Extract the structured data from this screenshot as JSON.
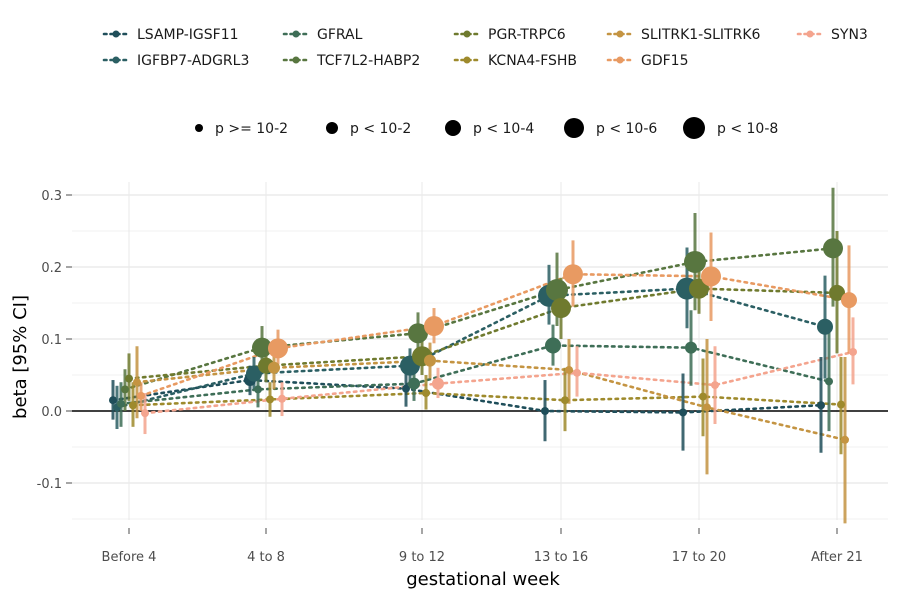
{
  "chart_data": {
    "type": "scatter",
    "xlabel": "gestational week",
    "ylabel": "beta [95% CI]",
    "categories": [
      "Before 4",
      "4 to 8",
      "9 to 12",
      "13 to 16",
      "17 to 20",
      "After 21"
    ],
    "ylim": [
      -0.155,
      0.31
    ],
    "yticks": [
      -0.1,
      0.0,
      0.1,
      0.2,
      0.3
    ],
    "ytick_labels": [
      "-0.1",
      "0.0",
      "0.1",
      "0.2",
      "0.3"
    ],
    "grid": true,
    "reference_line": 0.0,
    "legend_position": "top",
    "size_legend": [
      {
        "label": "p >= 10-2",
        "size": 1
      },
      {
        "label": "p < 10-2",
        "size": 2
      },
      {
        "label": "p < 10-4",
        "size": 3
      },
      {
        "label": "p < 10-6",
        "size": 4
      },
      {
        "label": "p < 10-8",
        "size": 5
      }
    ],
    "series": [
      {
        "name": "LSAMP-IGSF11",
        "color": "#1f4e5a",
        "values": [
          0.015,
          0.043,
          0.031,
          0.0,
          -0.002,
          0.008
        ],
        "lower": [
          -0.012,
          0.022,
          0.006,
          -0.042,
          -0.055,
          -0.058
        ],
        "upper": [
          0.043,
          0.063,
          0.056,
          0.043,
          0.052,
          0.075
        ],
        "psize": [
          1,
          2,
          1,
          1,
          1,
          1
        ]
      },
      {
        "name": "IGFBP7-ADGRL3",
        "color": "#2b5f63",
        "values": [
          0.005,
          0.052,
          0.063,
          0.16,
          0.17,
          0.117
        ],
        "lower": [
          -0.025,
          0.03,
          0.04,
          0.12,
          0.115,
          0.045
        ],
        "upper": [
          0.035,
          0.075,
          0.087,
          0.203,
          0.227,
          0.188
        ],
        "psize": [
          1,
          3,
          4,
          5,
          5,
          3
        ]
      },
      {
        "name": "GFRAL",
        "color": "#3e6e57",
        "values": [
          0.01,
          0.03,
          0.038,
          0.091,
          0.088,
          0.041
        ],
        "lower": [
          -0.022,
          0.005,
          0.014,
          0.063,
          0.035,
          -0.028
        ],
        "upper": [
          0.04,
          0.055,
          0.063,
          0.12,
          0.14,
          0.111
        ],
        "psize": [
          1,
          1,
          2,
          3,
          2,
          1
        ]
      },
      {
        "name": "TCF7L2-HABP2",
        "color": "#587640",
        "values": [
          0.03,
          0.088,
          0.108,
          0.168,
          0.207,
          0.226
        ],
        "lower": [
          0.0,
          0.06,
          0.08,
          0.118,
          0.14,
          0.145
        ],
        "upper": [
          0.058,
          0.118,
          0.137,
          0.22,
          0.275,
          0.31
        ],
        "psize": [
          1,
          4,
          4,
          5,
          5,
          4
        ]
      },
      {
        "name": "PGR-TRPC6",
        "color": "#6f7a2e",
        "values": [
          0.045,
          0.063,
          0.076,
          0.143,
          0.17,
          0.164
        ],
        "lower": [
          0.014,
          0.04,
          0.05,
          0.1,
          0.135,
          0.08
        ],
        "upper": [
          0.08,
          0.088,
          0.1,
          0.185,
          0.205,
          0.25
        ],
        "psize": [
          1,
          3,
          4,
          4,
          4,
          3
        ]
      },
      {
        "name": "KCNA4-FSHB",
        "color": "#9e8a2c",
        "values": [
          0.008,
          0.016,
          0.025,
          0.015,
          0.02,
          0.009
        ],
        "lower": [
          -0.022,
          -0.008,
          0.002,
          -0.028,
          -0.035,
          -0.06
        ],
        "upper": [
          0.04,
          0.04,
          0.05,
          0.06,
          0.073,
          0.075
        ],
        "psize": [
          1,
          1,
          1,
          1,
          1,
          1
        ]
      },
      {
        "name": "SLITRK1-SLITRK6",
        "color": "#c49442",
        "values": [
          0.04,
          0.06,
          0.07,
          0.057,
          0.005,
          -0.04
        ],
        "lower": [
          -0.01,
          0.03,
          0.045,
          0.01,
          -0.088,
          -0.156
        ],
        "upper": [
          0.09,
          0.09,
          0.095,
          0.1,
          0.1,
          0.075
        ],
        "psize": [
          1,
          2,
          2,
          1,
          1,
          1
        ]
      },
      {
        "name": "GDF15",
        "color": "#e89a62",
        "values": [
          0.021,
          0.087,
          0.118,
          0.19,
          0.187,
          0.154
        ],
        "lower": [
          0.0,
          0.065,
          0.094,
          0.145,
          0.125,
          0.08
        ],
        "upper": [
          0.04,
          0.113,
          0.143,
          0.237,
          0.248,
          0.23
        ],
        "psize": [
          1,
          4,
          4,
          4,
          4,
          3
        ]
      },
      {
        "name": "SYN3",
        "color": "#f4a48e",
        "values": [
          -0.003,
          0.017,
          0.038,
          0.053,
          0.036,
          0.082
        ],
        "lower": [
          -0.032,
          -0.007,
          0.018,
          0.02,
          -0.018,
          0.037
        ],
        "upper": [
          0.025,
          0.04,
          0.06,
          0.09,
          0.09,
          0.13
        ],
        "psize": [
          1,
          1,
          2,
          1,
          1,
          1
        ]
      }
    ]
  }
}
